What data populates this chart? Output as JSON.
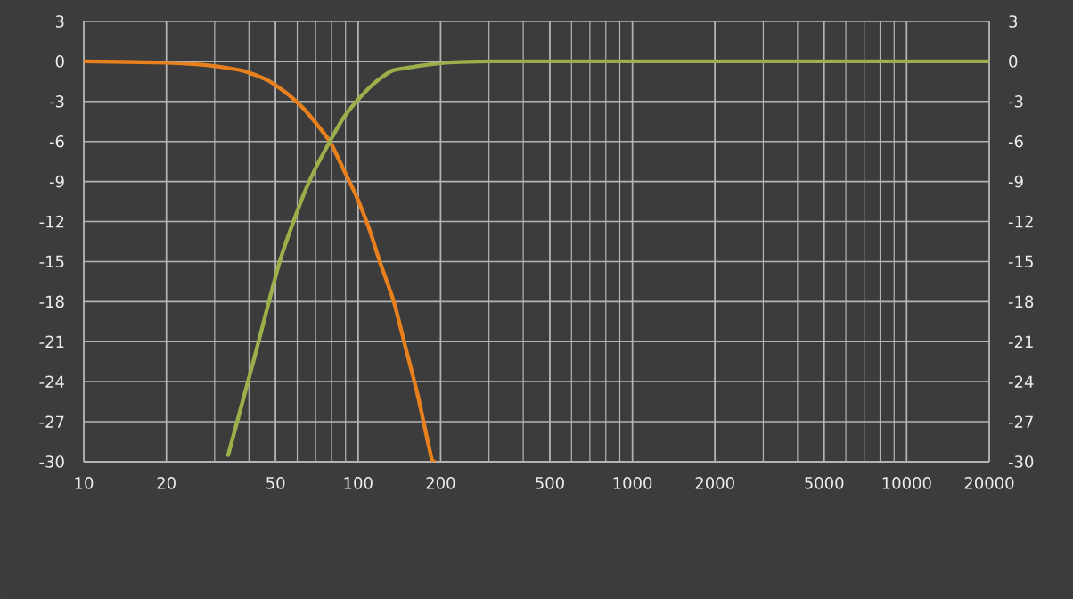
{
  "chart_data": {
    "type": "line",
    "log": "x",
    "grid": true,
    "xlim": [
      10,
      20000
    ],
    "xticks": [
      10,
      20,
      50,
      100,
      200,
      500,
      1000,
      2000,
      5000,
      10000,
      20000
    ],
    "ylim": [
      -30,
      3
    ],
    "yticks": [
      3,
      0,
      -3,
      -6,
      -9,
      -12,
      -15,
      -18,
      -21,
      -24,
      -27,
      -30
    ],
    "y2lim": [
      -30,
      3
    ],
    "y2ticks": [
      3,
      0,
      -3,
      -6,
      -9,
      -12,
      -15,
      -18,
      -21,
      -24,
      -27,
      -30
    ],
    "series": [
      {
        "color": "#e8801e",
        "x": [
          10,
          20,
          28.5,
          38,
          46.7,
          55,
          65,
          78.9,
          88,
          98.6,
          110,
          120,
          135,
          148,
          165,
          185,
          190
        ],
        "values": [
          0,
          -0.1,
          -0.3,
          -0.7,
          -1.4,
          -2.4,
          -3.8,
          -6.0,
          -8.0,
          -10.1,
          -12.6,
          -15.0,
          -18.0,
          -21.2,
          -25.0,
          -29.7,
          -30
        ]
      },
      {
        "color": "#9bb04a",
        "x": [
          33.6,
          42,
          51.8,
          63,
          70,
          78.9,
          88,
          98.6,
          115,
          133,
          160,
          209,
          300,
          443,
          1000,
          20000
        ],
        "values": [
          -29.5,
          -22.1,
          -15.0,
          -10.1,
          -8.0,
          -6.0,
          -4.3,
          -3.0,
          -1.6,
          -0.7,
          -0.4,
          -0.1,
          0,
          0,
          0,
          0
        ]
      }
    ]
  }
}
